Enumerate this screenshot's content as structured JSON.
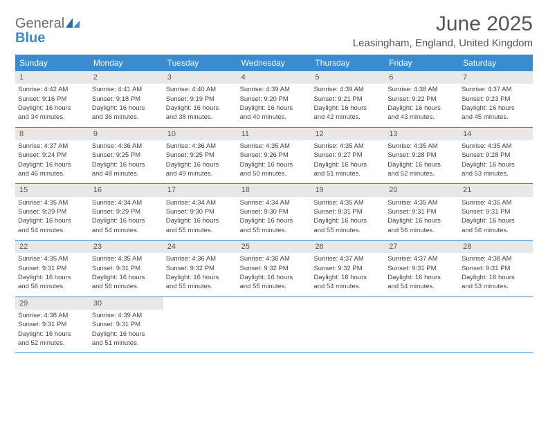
{
  "header": {
    "logo_general": "General",
    "logo_blue": "Blue",
    "month_title": "June 2025",
    "location": "Leasingham, England, United Kingdom"
  },
  "colors": {
    "header_blue": "#3b8bd0",
    "day_num_bg": "#e8e8e8",
    "text": "#444444",
    "title_text": "#555555"
  },
  "day_labels": [
    "Sunday",
    "Monday",
    "Tuesday",
    "Wednesday",
    "Thursday",
    "Friday",
    "Saturday"
  ],
  "weeks": [
    [
      {
        "num": "1",
        "sunrise": "Sunrise: 4:42 AM",
        "sunset": "Sunset: 9:16 PM",
        "daylight1": "Daylight: 16 hours",
        "daylight2": "and 34 minutes."
      },
      {
        "num": "2",
        "sunrise": "Sunrise: 4:41 AM",
        "sunset": "Sunset: 9:18 PM",
        "daylight1": "Daylight: 16 hours",
        "daylight2": "and 36 minutes."
      },
      {
        "num": "3",
        "sunrise": "Sunrise: 4:40 AM",
        "sunset": "Sunset: 9:19 PM",
        "daylight1": "Daylight: 16 hours",
        "daylight2": "and 38 minutes."
      },
      {
        "num": "4",
        "sunrise": "Sunrise: 4:39 AM",
        "sunset": "Sunset: 9:20 PM",
        "daylight1": "Daylight: 16 hours",
        "daylight2": "and 40 minutes."
      },
      {
        "num": "5",
        "sunrise": "Sunrise: 4:39 AM",
        "sunset": "Sunset: 9:21 PM",
        "daylight1": "Daylight: 16 hours",
        "daylight2": "and 42 minutes."
      },
      {
        "num": "6",
        "sunrise": "Sunrise: 4:38 AM",
        "sunset": "Sunset: 9:22 PM",
        "daylight1": "Daylight: 16 hours",
        "daylight2": "and 43 minutes."
      },
      {
        "num": "7",
        "sunrise": "Sunrise: 4:37 AM",
        "sunset": "Sunset: 9:23 PM",
        "daylight1": "Daylight: 16 hours",
        "daylight2": "and 45 minutes."
      }
    ],
    [
      {
        "num": "8",
        "sunrise": "Sunrise: 4:37 AM",
        "sunset": "Sunset: 9:24 PM",
        "daylight1": "Daylight: 16 hours",
        "daylight2": "and 46 minutes."
      },
      {
        "num": "9",
        "sunrise": "Sunrise: 4:36 AM",
        "sunset": "Sunset: 9:25 PM",
        "daylight1": "Daylight: 16 hours",
        "daylight2": "and 48 minutes."
      },
      {
        "num": "10",
        "sunrise": "Sunrise: 4:36 AM",
        "sunset": "Sunset: 9:25 PM",
        "daylight1": "Daylight: 16 hours",
        "daylight2": "and 49 minutes."
      },
      {
        "num": "11",
        "sunrise": "Sunrise: 4:35 AM",
        "sunset": "Sunset: 9:26 PM",
        "daylight1": "Daylight: 16 hours",
        "daylight2": "and 50 minutes."
      },
      {
        "num": "12",
        "sunrise": "Sunrise: 4:35 AM",
        "sunset": "Sunset: 9:27 PM",
        "daylight1": "Daylight: 16 hours",
        "daylight2": "and 51 minutes."
      },
      {
        "num": "13",
        "sunrise": "Sunrise: 4:35 AM",
        "sunset": "Sunset: 9:28 PM",
        "daylight1": "Daylight: 16 hours",
        "daylight2": "and 52 minutes."
      },
      {
        "num": "14",
        "sunrise": "Sunrise: 4:35 AM",
        "sunset": "Sunset: 9:28 PM",
        "daylight1": "Daylight: 16 hours",
        "daylight2": "and 53 minutes."
      }
    ],
    [
      {
        "num": "15",
        "sunrise": "Sunrise: 4:35 AM",
        "sunset": "Sunset: 9:29 PM",
        "daylight1": "Daylight: 16 hours",
        "daylight2": "and 54 minutes."
      },
      {
        "num": "16",
        "sunrise": "Sunrise: 4:34 AM",
        "sunset": "Sunset: 9:29 PM",
        "daylight1": "Daylight: 16 hours",
        "daylight2": "and 54 minutes."
      },
      {
        "num": "17",
        "sunrise": "Sunrise: 4:34 AM",
        "sunset": "Sunset: 9:30 PM",
        "daylight1": "Daylight: 16 hours",
        "daylight2": "and 55 minutes."
      },
      {
        "num": "18",
        "sunrise": "Sunrise: 4:34 AM",
        "sunset": "Sunset: 9:30 PM",
        "daylight1": "Daylight: 16 hours",
        "daylight2": "and 55 minutes."
      },
      {
        "num": "19",
        "sunrise": "Sunrise: 4:35 AM",
        "sunset": "Sunset: 9:31 PM",
        "daylight1": "Daylight: 16 hours",
        "daylight2": "and 55 minutes."
      },
      {
        "num": "20",
        "sunrise": "Sunrise: 4:35 AM",
        "sunset": "Sunset: 9:31 PM",
        "daylight1": "Daylight: 16 hours",
        "daylight2": "and 56 minutes."
      },
      {
        "num": "21",
        "sunrise": "Sunrise: 4:35 AM",
        "sunset": "Sunset: 9:31 PM",
        "daylight1": "Daylight: 16 hours",
        "daylight2": "and 56 minutes."
      }
    ],
    [
      {
        "num": "22",
        "sunrise": "Sunrise: 4:35 AM",
        "sunset": "Sunset: 9:31 PM",
        "daylight1": "Daylight: 16 hours",
        "daylight2": "and 56 minutes."
      },
      {
        "num": "23",
        "sunrise": "Sunrise: 4:35 AM",
        "sunset": "Sunset: 9:31 PM",
        "daylight1": "Daylight: 16 hours",
        "daylight2": "and 56 minutes."
      },
      {
        "num": "24",
        "sunrise": "Sunrise: 4:36 AM",
        "sunset": "Sunset: 9:32 PM",
        "daylight1": "Daylight: 16 hours",
        "daylight2": "and 55 minutes."
      },
      {
        "num": "25",
        "sunrise": "Sunrise: 4:36 AM",
        "sunset": "Sunset: 9:32 PM",
        "daylight1": "Daylight: 16 hours",
        "daylight2": "and 55 minutes."
      },
      {
        "num": "26",
        "sunrise": "Sunrise: 4:37 AM",
        "sunset": "Sunset: 9:32 PM",
        "daylight1": "Daylight: 16 hours",
        "daylight2": "and 54 minutes."
      },
      {
        "num": "27",
        "sunrise": "Sunrise: 4:37 AM",
        "sunset": "Sunset: 9:31 PM",
        "daylight1": "Daylight: 16 hours",
        "daylight2": "and 54 minutes."
      },
      {
        "num": "28",
        "sunrise": "Sunrise: 4:38 AM",
        "sunset": "Sunset: 9:31 PM",
        "daylight1": "Daylight: 16 hours",
        "daylight2": "and 53 minutes."
      }
    ],
    [
      {
        "num": "29",
        "sunrise": "Sunrise: 4:38 AM",
        "sunset": "Sunset: 9:31 PM",
        "daylight1": "Daylight: 16 hours",
        "daylight2": "and 52 minutes."
      },
      {
        "num": "30",
        "sunrise": "Sunrise: 4:39 AM",
        "sunset": "Sunset: 9:31 PM",
        "daylight1": "Daylight: 16 hours",
        "daylight2": "and 51 minutes."
      },
      {
        "empty": true
      },
      {
        "empty": true
      },
      {
        "empty": true
      },
      {
        "empty": true
      },
      {
        "empty": true
      }
    ]
  ]
}
